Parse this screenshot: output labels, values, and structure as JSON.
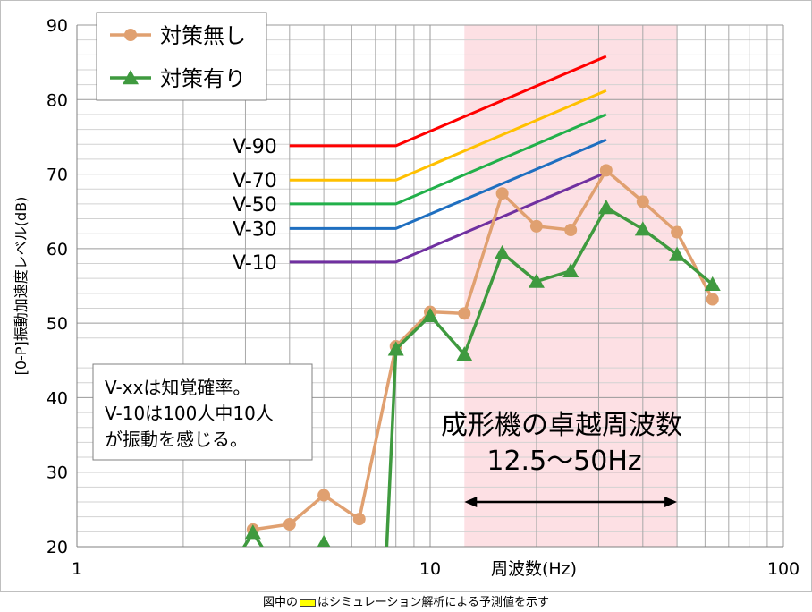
{
  "chart_data": {
    "type": "line",
    "x_scale": "log",
    "xlim": [
      1,
      100
    ],
    "ylim": [
      20,
      90
    ],
    "ylabel": "[0-P]振動加速度レベル(dB)",
    "xlabel": "周波数(Hz)",
    "x_tick_labels": [
      "1",
      "10",
      "100"
    ],
    "y_tick_labels": [
      "20",
      "30",
      "40",
      "50",
      "60",
      "70",
      "80",
      "90"
    ],
    "grid": true,
    "legend": {
      "position": "top-left",
      "entries": [
        {
          "name": "対策無し",
          "color": "#e0a070",
          "marker": "circle"
        },
        {
          "name": "対策有り",
          "color": "#3f9a3f",
          "marker": "triangle"
        }
      ]
    },
    "series": [
      {
        "name": "対策無し",
        "color": "#e0a070",
        "marker": "circle",
        "points": [
          {
            "x": 3.15,
            "y": 22.3
          },
          {
            "x": 4,
            "y": 23
          },
          {
            "x": 5,
            "y": 26.9
          },
          {
            "x": 6.3,
            "y": 23.7
          },
          {
            "x": 8,
            "y": 46.9
          },
          {
            "x": 10,
            "y": 51.5
          },
          {
            "x": 12.5,
            "y": 51.3
          },
          {
            "x": 16,
            "y": 67.4
          },
          {
            "x": 20,
            "y": 63
          },
          {
            "x": 25,
            "y": 62.5
          },
          {
            "x": 31.5,
            "y": 70.5
          },
          {
            "x": 40,
            "y": 66.3
          },
          {
            "x": 50,
            "y": 62.2
          },
          {
            "x": 63,
            "y": 53.2
          }
        ]
      },
      {
        "name": "対策有り",
        "color": "#3f9a3f",
        "marker": "triangle",
        "points": [
          {
            "x": 2.8,
            "y": 18
          },
          {
            "x": 3.15,
            "y": 21.9
          },
          {
            "x": 3.55,
            "y": 18
          },
          {
            "x": 4.6,
            "y": 18
          },
          {
            "x": 5,
            "y": 20.5
          },
          {
            "x": 5.4,
            "y": 18
          },
          {
            "x": 7.5,
            "y": 18
          },
          {
            "x": 8,
            "y": 46.5
          },
          {
            "x": 10,
            "y": 51
          },
          {
            "x": 12.5,
            "y": 45.8
          },
          {
            "x": 16,
            "y": 59.4
          },
          {
            "x": 20,
            "y": 55.6
          },
          {
            "x": 25,
            "y": 57
          },
          {
            "x": 31.5,
            "y": 65.5
          },
          {
            "x": 40,
            "y": 62.6
          },
          {
            "x": 50,
            "y": 59.2
          },
          {
            "x": 63,
            "y": 55.2
          }
        ]
      }
    ],
    "reference_lines": [
      {
        "label": "V-90",
        "color": "#ff0000",
        "points": [
          {
            "x": 4,
            "y": 73.8
          },
          {
            "x": 8,
            "y": 73.8
          },
          {
            "x": 31.5,
            "y": 85.8
          }
        ]
      },
      {
        "label": "V-70",
        "color": "#ffc000",
        "points": [
          {
            "x": 4,
            "y": 69.2
          },
          {
            "x": 8,
            "y": 69.2
          },
          {
            "x": 31.5,
            "y": 81.2
          }
        ]
      },
      {
        "label": "V-50",
        "color": "#22b04a",
        "points": [
          {
            "x": 4,
            "y": 66
          },
          {
            "x": 8,
            "y": 66
          },
          {
            "x": 31.5,
            "y": 78
          }
        ]
      },
      {
        "label": "V-30",
        "color": "#1f6fc0",
        "points": [
          {
            "x": 4,
            "y": 62.7
          },
          {
            "x": 8,
            "y": 62.7
          },
          {
            "x": 31.5,
            "y": 74.6
          }
        ]
      },
      {
        "label": "V-10",
        "color": "#7030a0",
        "points": [
          {
            "x": 4,
            "y": 58.2
          },
          {
            "x": 8,
            "y": 58.2
          },
          {
            "x": 31.5,
            "y": 70.2
          }
        ]
      }
    ],
    "shaded_band": {
      "x_from": 12.5,
      "x_to": 50,
      "color": "#fde0e4",
      "arrow": true
    },
    "annotations": {
      "box_lines": [
        "V-xxは知覚確率。",
        "V-10は100人中10人",
        "が振動を感じる。"
      ],
      "band_title": "成形機の卓越周波数",
      "band_range": "12.5～50Hz"
    }
  },
  "footnote": {
    "before": "図中の",
    "after": "はシミュレーション解析による予測値を示す",
    "swatch_fill": "#ffff00",
    "swatch_border": "#404040"
  }
}
